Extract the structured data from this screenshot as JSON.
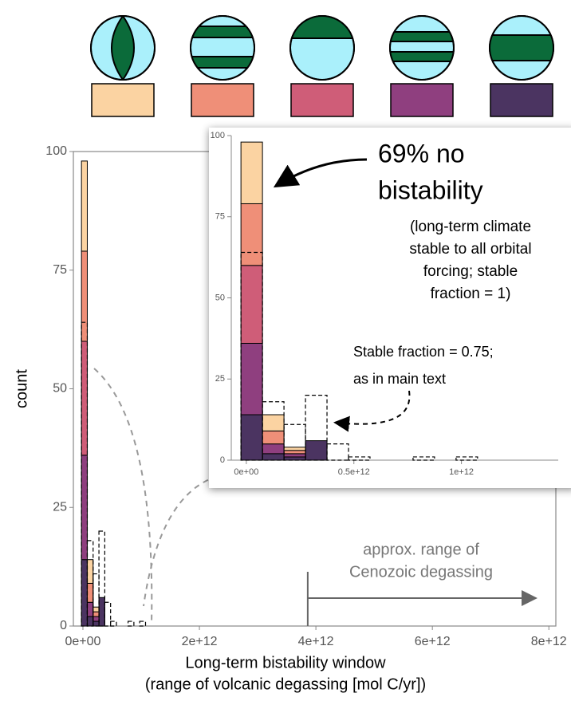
{
  "chart_data": [
    {
      "type": "histogram",
      "bins": [
        -25000000000,
        75000000000,
        175000000000,
        275000000000,
        375000000000,
        475000000000,
        575000000000,
        675000000000,
        775000000000,
        875000000000,
        975000000000,
        1075000000000
      ],
      "series": [
        {
          "color": "#4b3461",
          "values": [
            14,
            2,
            1,
            6,
            0,
            0,
            0,
            0,
            0,
            0,
            0
          ]
        },
        {
          "color": "#8f3f7f",
          "values": [
            22,
            3,
            1,
            0,
            0,
            0,
            0,
            0,
            0,
            0,
            0
          ]
        },
        {
          "color": "#cf5d78",
          "values": [
            24,
            0,
            0,
            0,
            0,
            0,
            0,
            0,
            0,
            0,
            0
          ]
        },
        {
          "color": "#ef8f78",
          "values": [
            19,
            4,
            1,
            0,
            0,
            0,
            0,
            0,
            0,
            0,
            0
          ]
        },
        {
          "color": "#fbd3a2",
          "values": [
            19,
            5,
            1,
            0,
            0,
            0,
            0,
            0,
            0,
            0,
            0
          ]
        }
      ],
      "outline": {
        "style": "dashed",
        "values": [
          64,
          18,
          11,
          20,
          5,
          1,
          0,
          0,
          1,
          0,
          1
        ]
      },
      "xlim": [
        -164000000000,
        8120000000000
      ],
      "ylim": [
        0,
        100
      ],
      "xticks": [
        {
          "value": 0,
          "label": "0e+00"
        },
        {
          "value": 2000000000000,
          "label": "2e+12"
        },
        {
          "value": 4000000000000,
          "label": "4e+12"
        },
        {
          "value": 6000000000000,
          "label": "6e+12"
        },
        {
          "value": 8000000000000,
          "label": "8e+12"
        }
      ],
      "yticks": [
        0,
        25,
        50,
        75,
        100
      ],
      "y_label": "count",
      "x_label": [
        "Long-term bistability window",
        "(range of volcanic degassing [mol C/yr])"
      ],
      "cenozoic_range": [
        3860000000000,
        7750000000000
      ],
      "annotations": [
        {
          "lines": [
            "approx. range of",
            "Cenozoic degassing"
          ]
        }
      ]
    },
    {
      "type": "histogram",
      "bins": [
        -25000000000,
        75000000000,
        175000000000,
        275000000000,
        375000000000,
        475000000000,
        575000000000,
        675000000000,
        775000000000,
        875000000000,
        975000000000,
        1075000000000
      ],
      "series": [
        {
          "color": "#4b3461",
          "values": [
            14,
            2,
            1,
            6,
            0,
            0,
            0,
            0,
            0,
            0,
            0
          ]
        },
        {
          "color": "#8f3f7f",
          "values": [
            22,
            3,
            1,
            0,
            0,
            0,
            0,
            0,
            0,
            0,
            0
          ]
        },
        {
          "color": "#cf5d78",
          "values": [
            24,
            0,
            0,
            0,
            0,
            0,
            0,
            0,
            0,
            0,
            0
          ]
        },
        {
          "color": "#ef8f78",
          "values": [
            19,
            4,
            1,
            0,
            0,
            0,
            0,
            0,
            0,
            0,
            0
          ]
        },
        {
          "color": "#fbd3a2",
          "values": [
            19,
            5,
            1,
            0,
            0,
            0,
            0,
            0,
            0,
            0,
            0
          ]
        }
      ],
      "outline": {
        "style": "dashed",
        "values": [
          64,
          18,
          11,
          20,
          5,
          1,
          0,
          0,
          1,
          0,
          1
        ]
      },
      "xlim": [
        -70000000000,
        1450000000000
      ],
      "ylim": [
        0,
        100
      ],
      "xticks": [
        {
          "value": 0,
          "label": "0e+00"
        },
        {
          "value": 500000000000,
          "label": "0.5e+12"
        },
        {
          "value": 1000000000000,
          "label": "1e+12"
        }
      ],
      "yticks": [
        0,
        25,
        50,
        75,
        100
      ],
      "annotations": [
        {
          "lines": [
            "69% no",
            "bistability"
          ]
        },
        {
          "lines": [
            "(long-term climate",
            "stable to all orbital",
            "forcing; stable",
            "fraction = 1)"
          ]
        },
        {
          "lines": [
            "Stable fraction = 0.75;",
            "as in main text"
          ]
        }
      ]
    }
  ]
}
